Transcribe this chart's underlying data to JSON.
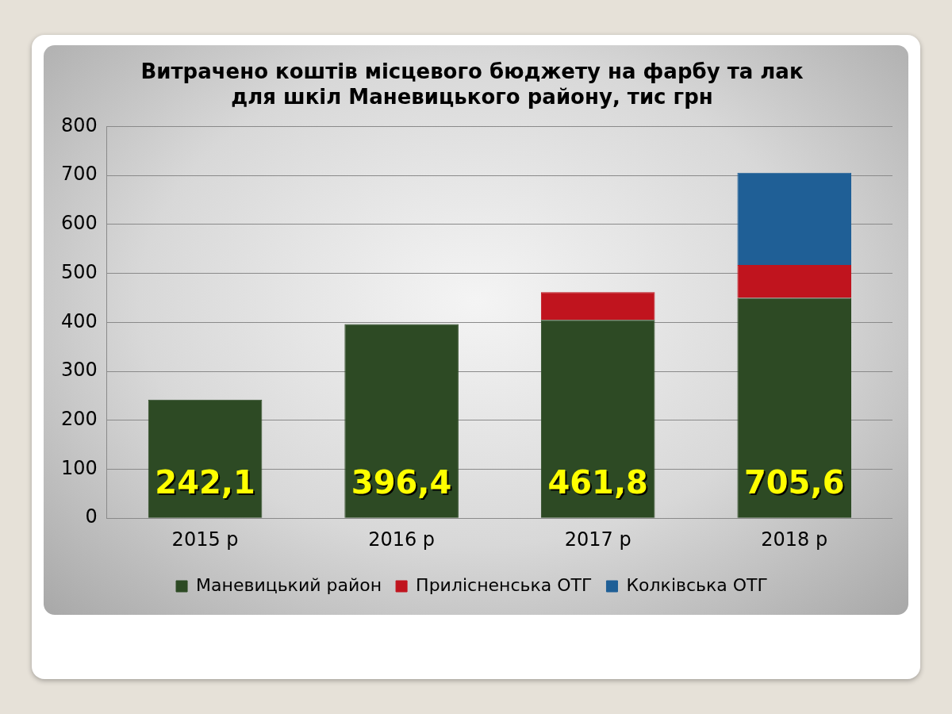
{
  "chart_data": {
    "type": "bar",
    "title": "Витрачено коштів місцевого бюджету на фарбу та лак для шкіл Маневицького району, тис грн",
    "categories": [
      "2015 р",
      "2016 р",
      "2017 р",
      "2018 р"
    ],
    "stacked": true,
    "series": [
      {
        "name": "Маневицький район",
        "color": "#2d4a24",
        "values": [
          242.1,
          396.4,
          405,
          450
        ]
      },
      {
        "name": "Прилісненська ОТГ",
        "color": "#c0141e",
        "values": [
          null,
          null,
          56.8,
          67
        ]
      },
      {
        "name": "Колківська ОТГ",
        "color": "#1f5f96",
        "values": [
          null,
          null,
          null,
          188.6
        ]
      }
    ],
    "totals": [
      "242,1",
      "396,4",
      "461,8",
      "705,6"
    ],
    "ylim": [
      0,
      800
    ],
    "yticks": [
      0,
      100,
      200,
      300,
      400,
      500,
      600,
      700,
      800
    ],
    "grid": "y",
    "legend": "bottom"
  }
}
